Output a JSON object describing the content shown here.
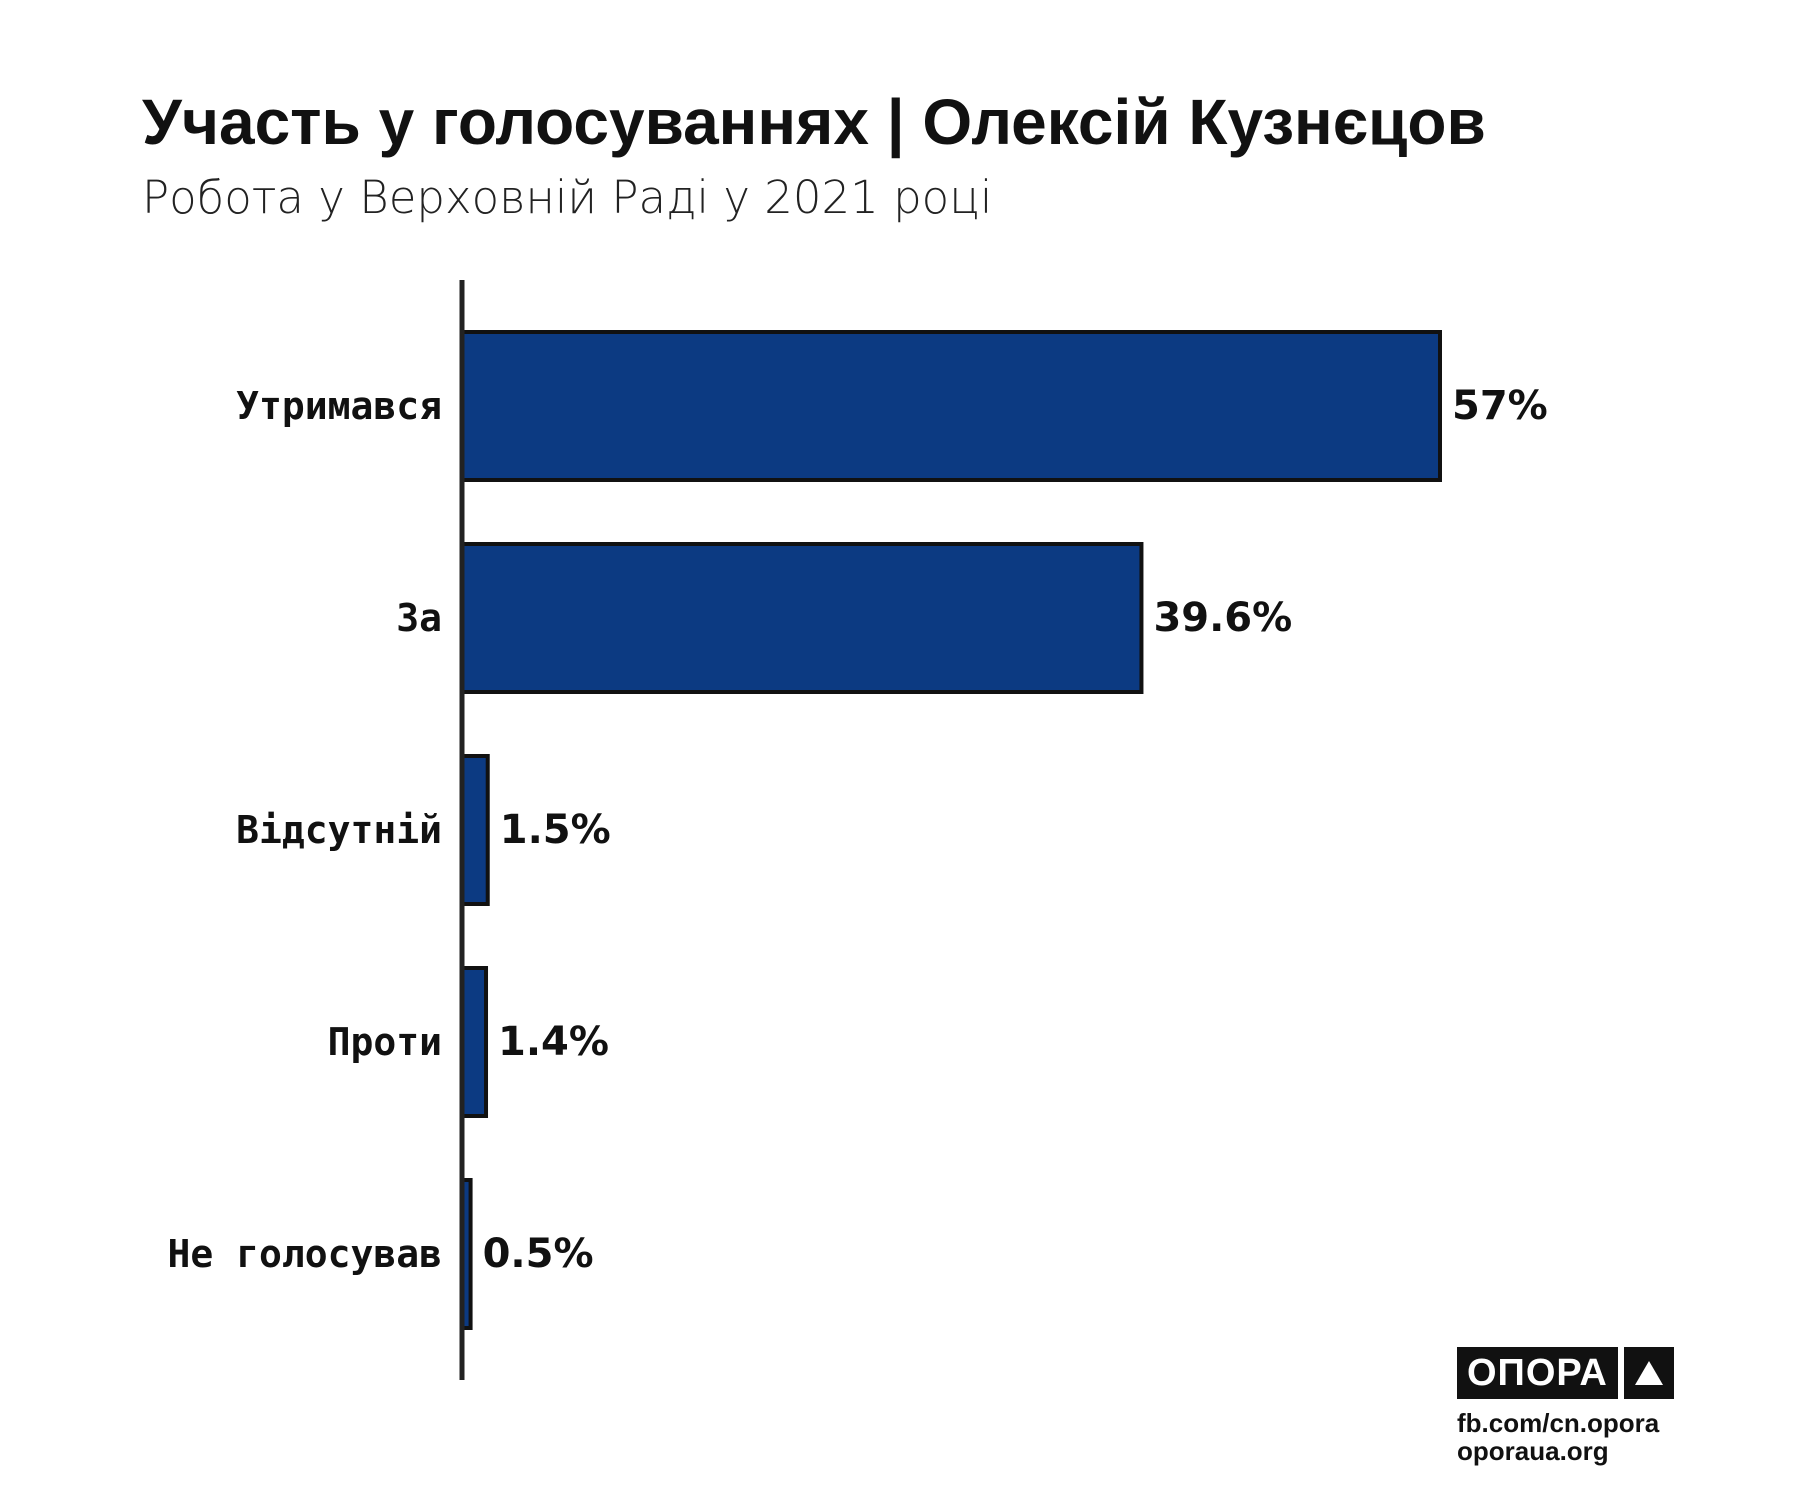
{
  "title": "Участь у голосуваннях | Олексій Кузнєцов",
  "subtitle": "Робота у Верховній Раді у 2021 році",
  "colors": {
    "bar_fill": "#0c3a82",
    "bar_stroke": "#111111",
    "axis": "#222222",
    "text": "#111111"
  },
  "chart_data": {
    "type": "bar",
    "orientation": "horizontal",
    "categories": [
      "Утримався",
      "За",
      "Відсутній",
      "Проти",
      "Не голосував"
    ],
    "values": [
      57,
      39.6,
      1.5,
      1.4,
      0.5
    ],
    "value_labels": [
      "57%",
      "39.6%",
      "1.5%",
      "1.4%",
      "0.5%"
    ],
    "unit": "%",
    "xlim": [
      0,
      57
    ],
    "grid": false,
    "legend": "none"
  },
  "footer": {
    "logo_text": "ОПОРА",
    "logo_icon": "triangle-icon",
    "links": [
      "fb.com/cn.opora",
      "oporaua.org"
    ]
  }
}
